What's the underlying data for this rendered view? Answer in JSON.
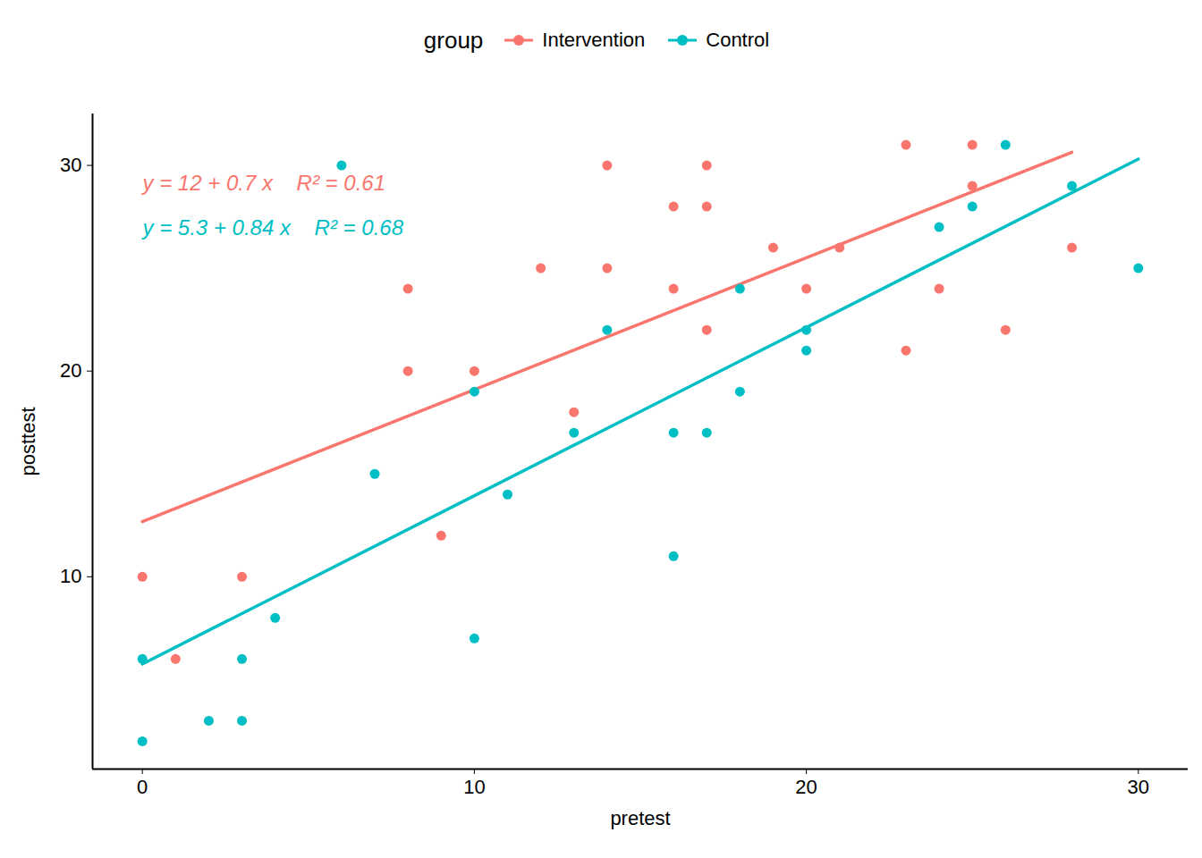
{
  "chart_data": {
    "type": "scatter",
    "x_label": "pretest",
    "y_label": "posttest",
    "legend_title": "group",
    "legend": "top",
    "xlim": [
      -1.5,
      31.5
    ],
    "xticks": [
      0,
      10,
      20,
      30
    ],
    "ylim": [
      0.65,
      32.5
    ],
    "yticks": [
      10,
      20,
      30
    ],
    "grid": false,
    "series": [
      {
        "name": "Intervention",
        "color": "#F8766D",
        "marker": "circle",
        "annotation": "y = 12 + 0.7 x    R² = 0.61",
        "x": [
          0,
          1,
          3,
          8,
          8,
          9,
          10,
          12,
          13,
          14,
          14,
          16,
          16,
          17,
          17,
          17,
          19,
          20,
          21,
          23,
          23,
          24,
          25,
          25,
          26,
          28
        ],
        "values": [
          10,
          6,
          10,
          24,
          20,
          12,
          20,
          25,
          18,
          30,
          25,
          28,
          24,
          30,
          28,
          22,
          26,
          24,
          26,
          31,
          21,
          24,
          31,
          29,
          22,
          26
        ]
      },
      {
        "name": "Control",
        "color": "#00BFC4",
        "marker": "circle",
        "annotation": "y = 5.3 + 0.84 x    R² = 0.68",
        "x": [
          0,
          0,
          2,
          3,
          3,
          4,
          6,
          7,
          10,
          10,
          11,
          13,
          14,
          16,
          16,
          17,
          18,
          18,
          20,
          20,
          24,
          25,
          26,
          28,
          30
        ],
        "values": [
          6,
          2,
          3,
          6,
          3,
          8,
          30,
          15,
          19,
          7,
          14,
          17,
          22,
          17,
          11,
          17,
          24,
          19,
          22,
          21,
          27,
          28,
          31,
          29,
          25
        ]
      }
    ]
  }
}
